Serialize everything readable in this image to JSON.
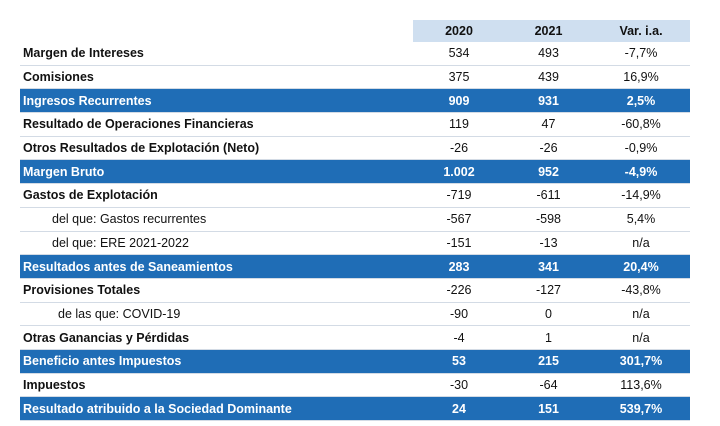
{
  "table": {
    "header": [
      "2020",
      "2021",
      "Var. i.a."
    ],
    "rows": [
      [
        "Margen de Intereses",
        "534",
        "493",
        "-7,7%"
      ],
      [
        "Comisiones",
        "375",
        "439",
        "16,9%"
      ],
      [
        "Ingresos Recurrentes",
        "909",
        "931",
        "2,5%"
      ],
      [
        "Resultado de Operaciones Financieras",
        "119",
        "47",
        "-60,8%"
      ],
      [
        "Otros Resultados de Explotación (Neto)",
        "-26",
        "-26",
        "-0,9%"
      ],
      [
        "Margen Bruto",
        "1.002",
        "952",
        "-4,9%"
      ],
      [
        "Gastos de Explotación",
        "-719",
        "-611",
        "-14,9%"
      ],
      [
        "del que: Gastos recurrentes",
        "-567",
        "-598",
        "5,4%"
      ],
      [
        "del que: ERE 2021-2022",
        "-151",
        "-13",
        "n/a"
      ],
      [
        "Resultados antes de Saneamientos",
        "283",
        "341",
        "20,4%"
      ],
      [
        "Provisiones Totales",
        "-226",
        "-127",
        "-43,8%"
      ],
      [
        "de las que: COVID-19",
        "-90",
        "0",
        "n/a"
      ],
      [
        "Otras Ganancias y Pérdidas",
        "-4",
        "1",
        "n/a"
      ],
      [
        "Beneficio antes Impuestos",
        "53",
        "215",
        "301,7%"
      ],
      [
        "Impuestos",
        "-30",
        "-64",
        "113,6%"
      ],
      [
        "Resultado atribuido a la Sociedad Dominante",
        "24",
        "151",
        "539,7%"
      ]
    ]
  }
}
